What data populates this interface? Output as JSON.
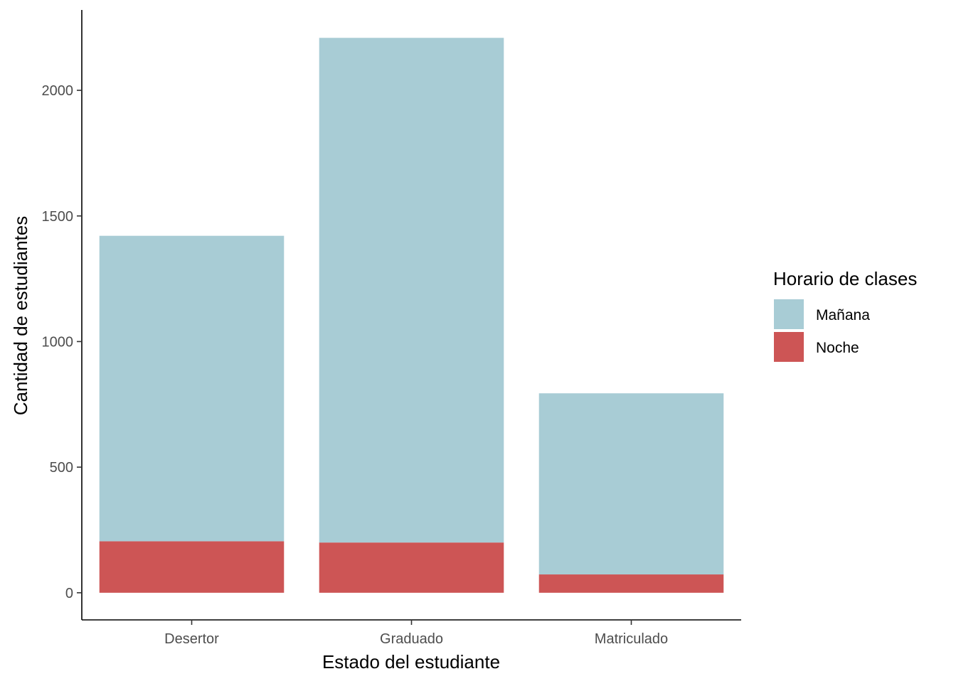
{
  "chart_data": {
    "type": "bar",
    "stacked": true,
    "categories": [
      "Desertor",
      "Graduado",
      "Matriculado"
    ],
    "series": [
      {
        "name": "Noche",
        "values": [
          205,
          200,
          73
        ],
        "color": "#CD5555"
      },
      {
        "name": "Mañana",
        "values": [
          1216,
          2009,
          721
        ],
        "color": "#A8CCD5"
      }
    ],
    "title": "",
    "xlabel": "Estado del estudiante",
    "ylabel": "Cantidad de estudiantes",
    "ylim": [
      -108,
      2320
    ],
    "yticks": [
      0,
      500,
      1000,
      1500,
      2000
    ],
    "grid": false,
    "legend": {
      "title": "Horario de clases",
      "placement": "right",
      "entries": [
        "Mañana",
        "Noche"
      ]
    }
  }
}
